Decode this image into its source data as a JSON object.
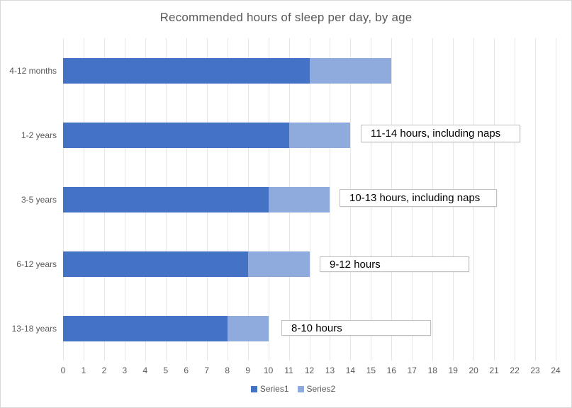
{
  "title": "Recommended hours of sleep per day, by age",
  "chart_data": {
    "type": "bar",
    "orientation": "horizontal",
    "stacked": true,
    "title": "Recommended hours of sleep per day, by age",
    "categories": [
      "4-12 months",
      "1-2 years",
      "3-5 years",
      "6-12 years",
      "13-18 years"
    ],
    "series": [
      {
        "name": "Series1",
        "color": "#4472C4",
        "values": [
          12,
          11,
          10,
          9,
          8
        ]
      },
      {
        "name": "Series2",
        "color": "#8FAADC",
        "values": [
          4,
          3,
          3,
          3,
          2
        ]
      }
    ],
    "x_axis": {
      "min": 0,
      "max": 24,
      "tick_step": 1,
      "ticks": [
        "0",
        "1",
        "2",
        "3",
        "4",
        "5",
        "6",
        "7",
        "8",
        "9",
        "10",
        "11",
        "12",
        "13",
        "14",
        "15",
        "16",
        "17",
        "18",
        "19",
        "20",
        "21",
        "22",
        "23",
        "24"
      ]
    },
    "grid": true,
    "legend": {
      "position": "bottom",
      "entries": [
        "Series1",
        "Series2"
      ]
    },
    "annotations": [
      {
        "category": "1-2 years",
        "text": "11-14 hours, including naps"
      },
      {
        "category": "3-5 years",
        "text": "10-13 hours, including naps"
      },
      {
        "category": "6-12 years",
        "text": "9-12 hours"
      },
      {
        "category": "13-18 years",
        "text": "8-10 hours"
      }
    ]
  },
  "colors": {
    "series1": "#4472C4",
    "series2": "#8FAADC",
    "title_text": "#595959",
    "axis_text": "#595959",
    "gridline": "#E6E6E6",
    "annotation_border": "#BFBFBF",
    "annotation_text": "#000000",
    "chart_border": "#D9D9D9",
    "background": "#FFFFFF"
  }
}
